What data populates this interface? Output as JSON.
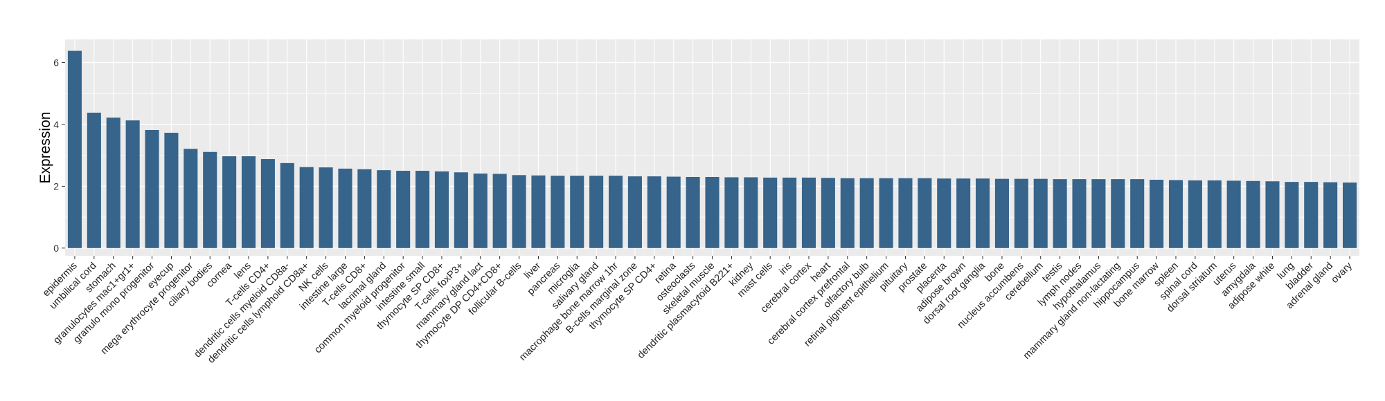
{
  "chart_data": {
    "type": "bar",
    "title": "",
    "xlabel": "",
    "ylabel": "Expression",
    "ylim": [
      -0.25,
      6.75
    ],
    "yticks": [
      0,
      2,
      4,
      6
    ],
    "grid": true,
    "legend": "none",
    "colors": {
      "bar": "#36648B",
      "panel": "#EBEBEB",
      "grid": "#FFFFFF"
    },
    "categories": [
      "epidermis",
      "umbilical cord",
      "stomach",
      "granulocytes mac1+gr1+",
      "granulo mono progenitor",
      "eyecup",
      "mega erythrocyte progenitor",
      "ciliary bodies",
      "cornea",
      "lens",
      "T-cells CD4+",
      "dendritic cells myeloid CD8a-",
      "dendritic cells lymphoid CD8a+",
      "NK cells",
      "intestine large",
      "T-cells CD8+",
      "lacrimal gland",
      "common myeloid progenitor",
      "intestine small",
      "thymocyte SP CD8+",
      "T-cells foxP3+",
      "mammary gland  lact",
      "thymocyte DP CD4+CD8+",
      "follicular B-cells",
      "liver",
      "pancreas",
      "microglia",
      "salivary gland",
      "macrophage bone marrow 1hr",
      "B-cells marginal zone",
      "thymocyte SP CD4+",
      "retina",
      "osteoclasts",
      "skeletal muscle",
      "dendritic plasmacytoid B221+",
      "kidney",
      "mast cells",
      "iris",
      "cerebral cortex",
      "heart",
      "cerebral cortex prefrontal",
      "olfactory bulb",
      "retinal pigment epithelium",
      "pituitary",
      "prostate",
      "placenta",
      "adipose brown",
      "dorsal root ganglia",
      "bone",
      "nucleus accumbens",
      "cerebellum",
      "testis",
      "lymph nodes",
      "hypothalamus",
      "mammary gland non-lactating",
      "hippocampus",
      "bone marrow",
      "spleen",
      "spinal cord",
      "dorsal striatum",
      "uterus",
      "amygdala",
      "adipose white",
      "lung",
      "bladder",
      "adrenal gland",
      "ovary"
    ],
    "values": [
      6.38,
      4.38,
      4.22,
      4.13,
      3.82,
      3.73,
      3.21,
      3.11,
      2.97,
      2.97,
      2.88,
      2.75,
      2.62,
      2.61,
      2.57,
      2.55,
      2.52,
      2.5,
      2.5,
      2.48,
      2.45,
      2.41,
      2.4,
      2.36,
      2.35,
      2.34,
      2.34,
      2.34,
      2.34,
      2.32,
      2.32,
      2.31,
      2.3,
      2.3,
      2.29,
      2.29,
      2.28,
      2.28,
      2.28,
      2.27,
      2.26,
      2.26,
      2.26,
      2.26,
      2.26,
      2.25,
      2.25,
      2.25,
      2.24,
      2.24,
      2.24,
      2.23,
      2.23,
      2.23,
      2.23,
      2.23,
      2.21,
      2.2,
      2.19,
      2.19,
      2.18,
      2.17,
      2.16,
      2.14,
      2.14,
      2.13,
      2.12
    ]
  }
}
